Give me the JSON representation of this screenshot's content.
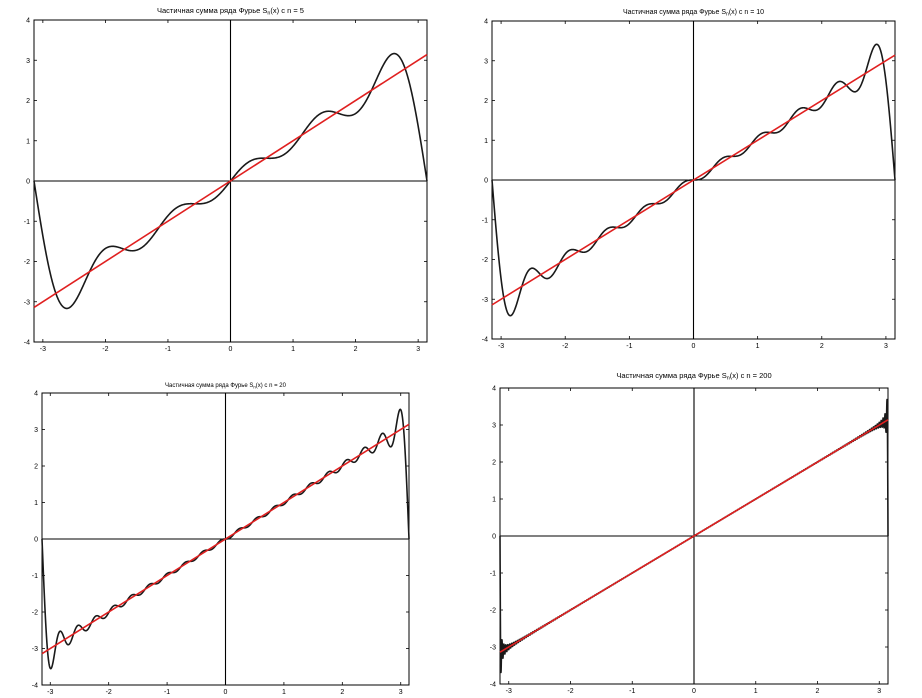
{
  "colors": {
    "partial_sum": "#1a1a1a",
    "function": "#e02020",
    "axes": "#000000",
    "background": "#ffffff"
  },
  "chart_data": [
    {
      "type": "line",
      "title": {
        "prefix": "Частичная сумма ряда Фурье S",
        "subscript": "n",
        "suffix": "(x) с n = 5"
      },
      "n": 5,
      "xlim": [
        -3.1416,
        3.1416
      ],
      "ylim": [
        -4,
        4
      ],
      "xticks": [
        -3,
        -2,
        -1,
        0,
        1,
        2,
        3
      ],
      "yticks": [
        -4,
        -3,
        -2,
        -1,
        0,
        1,
        2,
        3,
        4
      ],
      "grid": false,
      "series": [
        {
          "role": "partial_sum",
          "formula": "S_n(x) = sum_{k=1..n} 2(-1)^(k+1) sin(kx)/k",
          "color": "#1a1a1a"
        },
        {
          "role": "function",
          "formula": "f(x) = x",
          "color": "#e02020"
        }
      ]
    },
    {
      "type": "line",
      "title": {
        "prefix": "Частичная сумма ряда Фурье S",
        "subscript": "n",
        "suffix": "(x) с n = 10"
      },
      "n": 10,
      "xlim": [
        -3.1416,
        3.1416
      ],
      "ylim": [
        -4,
        4
      ],
      "xticks": [
        -3,
        -2,
        -1,
        0,
        1,
        2,
        3
      ],
      "yticks": [
        -4,
        -3,
        -2,
        -1,
        0,
        1,
        2,
        3,
        4
      ],
      "grid": false,
      "series": [
        {
          "role": "partial_sum",
          "formula": "S_n(x) = sum_{k=1..n} 2(-1)^(k+1) sin(kx)/k",
          "color": "#1a1a1a"
        },
        {
          "role": "function",
          "formula": "f(x) = x",
          "color": "#e02020"
        }
      ]
    },
    {
      "type": "line",
      "title": {
        "prefix": "Частичная сумма ряда Фурье S",
        "subscript": "n",
        "suffix": "(x) с n = 20"
      },
      "n": 20,
      "xlim": [
        -3.1416,
        3.1416
      ],
      "ylim": [
        -4,
        4
      ],
      "xticks": [
        -3,
        -2,
        -1,
        0,
        1,
        2,
        3
      ],
      "yticks": [
        -4,
        -3,
        -2,
        -1,
        0,
        1,
        2,
        3,
        4
      ],
      "grid": false,
      "series": [
        {
          "role": "partial_sum",
          "formula": "S_n(x) = sum_{k=1..n} 2(-1)^(k+1) sin(kx)/k",
          "color": "#1a1a1a"
        },
        {
          "role": "function",
          "formula": "f(x) = x",
          "color": "#e02020"
        }
      ]
    },
    {
      "type": "line",
      "title": {
        "prefix": "Частичная сумма ряда Фурье S",
        "subscript": "n",
        "suffix": "(x) с n = 200"
      },
      "n": 200,
      "xlim": [
        -3.1416,
        3.1416
      ],
      "ylim": [
        -4,
        4
      ],
      "xticks": [
        -3,
        -2,
        -1,
        0,
        1,
        2,
        3
      ],
      "yticks": [
        -4,
        -3,
        -2,
        -1,
        0,
        1,
        2,
        3,
        4
      ],
      "grid": false,
      "series": [
        {
          "role": "partial_sum",
          "formula": "S_n(x) = sum_{k=1..n} 2(-1)^(k+1) sin(kx)/k",
          "color": "#1a1a1a"
        },
        {
          "role": "function",
          "formula": "f(x) = x",
          "color": "#e02020"
        }
      ]
    }
  ]
}
